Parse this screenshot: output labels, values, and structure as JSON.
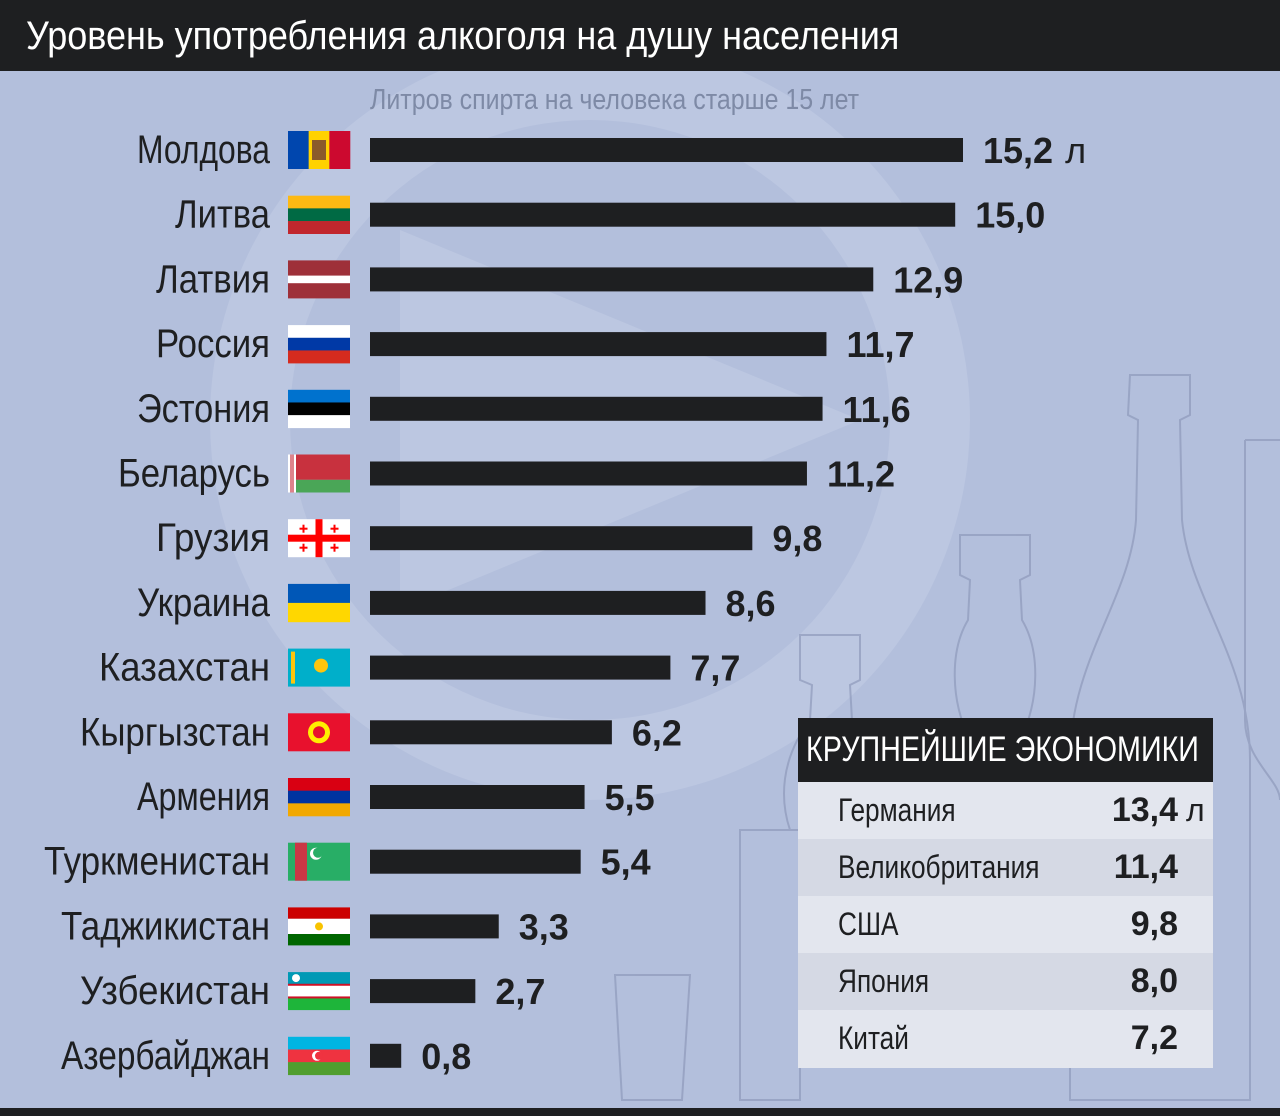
{
  "title": "Уровень употребления алкоголя на душу населения",
  "subtitle": "Литров спирта на человека старше 15 лет",
  "unit": "л",
  "chart_data": {
    "type": "bar",
    "orientation": "horizontal",
    "categories": [
      "Молдова",
      "Литва",
      "Латвия",
      "Россия",
      "Эстония",
      "Беларусь",
      "Грузия",
      "Украина",
      "Казахстан",
      "Кыргызстан",
      "Армения",
      "Туркменистан",
      "Таджикистан",
      "Узбекистан",
      "Азербайджан"
    ],
    "values": [
      15.2,
      15.0,
      12.9,
      11.7,
      11.6,
      11.2,
      9.8,
      8.6,
      7.7,
      6.2,
      5.5,
      5.4,
      3.3,
      2.7,
      0.8
    ],
    "value_labels": [
      "15,2",
      "15,0",
      "12,9",
      "11,7",
      "11,6",
      "11,2",
      "9,8",
      "8,6",
      "7,7",
      "6,2",
      "5,5",
      "5,4",
      "3,3",
      "2,7",
      "0,8"
    ],
    "first_label_unit": "л",
    "bar_color": "#1e1f21",
    "flags": [
      "moldova",
      "lithuania",
      "latvia",
      "russia",
      "estonia",
      "belarus",
      "georgia",
      "ukraine",
      "kazakhstan",
      "kyrgyzstan",
      "armenia",
      "turkmenistan",
      "tajikistan",
      "uzbekistan",
      "azerbaijan"
    ],
    "xlim": [
      0,
      15.2
    ],
    "grid": false,
    "legend": "none"
  },
  "panel": {
    "title": "КРУПНЕЙШИЕ ЭКОНОМИКИ",
    "rows": [
      {
        "name": "Германия",
        "value": "13,4"
      },
      {
        "name": "Великобритания",
        "value": "11,4"
      },
      {
        "name": "США",
        "value": "9,8"
      },
      {
        "name": "Япония",
        "value": "8,0"
      },
      {
        "name": "Китай",
        "value": "7,2"
      }
    ]
  },
  "colors": {
    "background": "#b3bfdc",
    "dark": "#1e1f21",
    "subtitle": "#7e8aa6",
    "panel": "#e3e6ee"
  }
}
